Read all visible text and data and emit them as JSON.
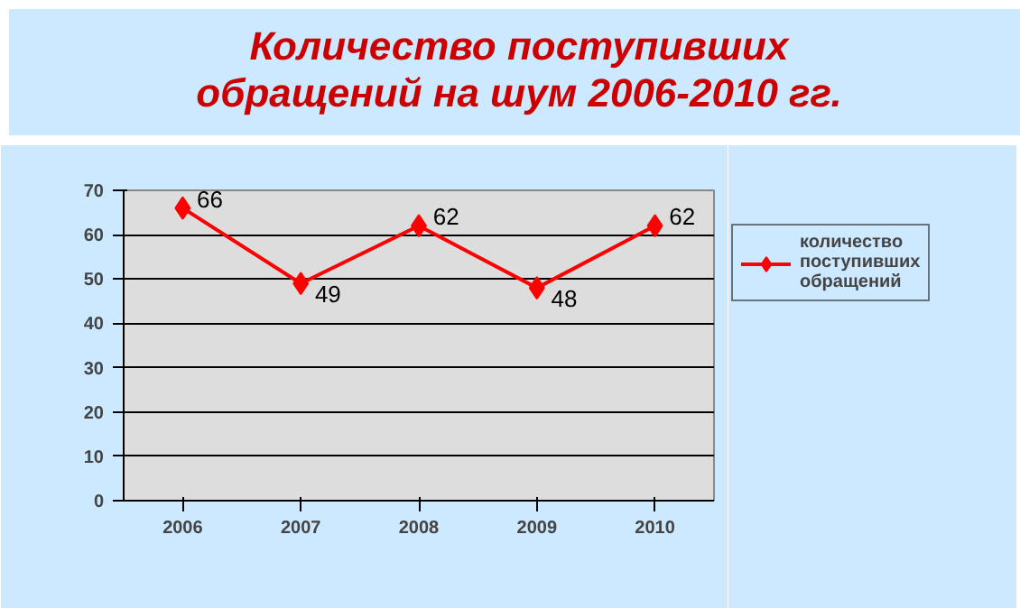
{
  "chart_data": {
    "type": "line",
    "title": "Количество поступивших\nобращений на шум 2006-2010 гг.",
    "categories": [
      "2006",
      "2007",
      "2008",
      "2009",
      "2010"
    ],
    "series": [
      {
        "name": "количество поступивших обращений",
        "color": "#ff0000",
        "values": [
          66,
          49,
          62,
          48,
          62
        ]
      }
    ],
    "ylim": [
      0,
      70
    ],
    "yticks": [
      0,
      10,
      20,
      30,
      40,
      50,
      60,
      70
    ],
    "grid": "y",
    "legend": "right",
    "marker": "diamond",
    "line_style": "solid",
    "data_labels": true
  }
}
